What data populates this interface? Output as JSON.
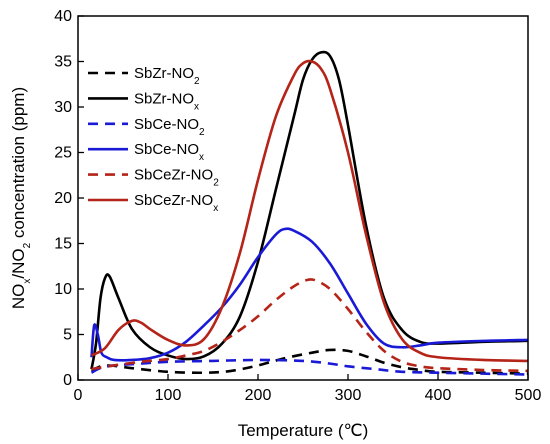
{
  "chart_data": {
    "type": "line",
    "xlabel": "Temperature (℃)",
    "ylabel": {
      "main": "NO",
      "sub1": "x",
      "mid": "/NO",
      "sub2": "2",
      "tail": " concentration (ppm)"
    },
    "xlim": [
      0,
      500
    ],
    "ylim": [
      0,
      40
    ],
    "xticks": [
      0,
      100,
      200,
      300,
      400,
      500
    ],
    "yticks": [
      0,
      5,
      10,
      15,
      20,
      25,
      30,
      35,
      40
    ],
    "grid": false,
    "legend_position": "left",
    "series": [
      {
        "name": "SbZr-NO2",
        "label_base": "SbZr-NO",
        "label_sub": "2",
        "color": "#000000",
        "dash": "dashed",
        "x": [
          15,
          30,
          60,
          100,
          140,
          170,
          200,
          230,
          260,
          280,
          300,
          320,
          340,
          360,
          380,
          400,
          450,
          500
        ],
        "y": [
          1.0,
          1.6,
          1.3,
          0.9,
          0.8,
          1.0,
          1.6,
          2.4,
          3.0,
          3.3,
          3.2,
          2.6,
          1.9,
          1.4,
          1.1,
          0.9,
          0.8,
          0.7
        ]
      },
      {
        "name": "SbZr-NOx",
        "label_base": "SbZr-NO",
        "label_sub": "x",
        "color": "#000000",
        "dash": "solid",
        "x": [
          15,
          20,
          25,
          30,
          35,
          45,
          60,
          80,
          100,
          120,
          140,
          160,
          180,
          200,
          220,
          240,
          250,
          260,
          270,
          280,
          290,
          300,
          320,
          340,
          360,
          380,
          400,
          450,
          500
        ],
        "y": [
          1.2,
          4.0,
          9.0,
          11.2,
          11.4,
          9.0,
          5.6,
          3.6,
          2.7,
          2.3,
          2.6,
          4.0,
          7.0,
          13.0,
          21.0,
          29.0,
          33.0,
          35.2,
          36.0,
          35.6,
          33.0,
          28.0,
          17.0,
          9.0,
          5.5,
          4.2,
          4.0,
          4.2,
          4.3
        ]
      },
      {
        "name": "SbCe-NO2",
        "label_base": "SbCe-NO",
        "label_sub": "2",
        "color": "#1a1ad6",
        "dash": "dashed",
        "x": [
          15,
          25,
          40,
          70,
          100,
          150,
          200,
          250,
          280,
          300,
          330,
          360,
          400,
          450,
          500
        ],
        "y": [
          0.8,
          1.3,
          1.6,
          1.8,
          2.0,
          2.1,
          2.2,
          2.1,
          1.8,
          1.5,
          1.2,
          0.9,
          0.8,
          0.7,
          0.6
        ]
      },
      {
        "name": "SbCe-NOx",
        "label_base": "SbCe-NO",
        "label_sub": "x",
        "color": "#1a1ad6",
        "dash": "solid",
        "x": [
          15,
          18,
          22,
          26,
          32,
          40,
          60,
          80,
          100,
          120,
          140,
          160,
          180,
          200,
          220,
          230,
          240,
          260,
          280,
          300,
          320,
          340,
          360,
          380,
          400,
          450,
          500
        ],
        "y": [
          2.5,
          6.0,
          5.0,
          3.0,
          2.5,
          2.2,
          2.2,
          2.4,
          3.0,
          4.2,
          6.0,
          8.0,
          10.5,
          13.5,
          16.0,
          16.6,
          16.4,
          15.2,
          12.8,
          9.5,
          6.2,
          4.0,
          3.6,
          3.8,
          4.1,
          4.3,
          4.4
        ]
      },
      {
        "name": "SbCeZr-NO2",
        "label_base": "SbCeZr-NO",
        "label_sub": "2",
        "color": "#b42418",
        "dash": "dashed",
        "x": [
          15,
          40,
          70,
          100,
          120,
          140,
          160,
          180,
          200,
          220,
          240,
          255,
          265,
          280,
          300,
          320,
          340,
          360,
          380,
          400,
          450,
          500
        ],
        "y": [
          1.2,
          1.6,
          2.0,
          2.3,
          2.7,
          3.2,
          4.2,
          5.5,
          7.0,
          8.8,
          10.3,
          11.0,
          10.9,
          10.0,
          7.8,
          5.3,
          3.2,
          2.0,
          1.5,
          1.3,
          1.1,
          1.0
        ]
      },
      {
        "name": "SbCeZr-NOx",
        "label_base": "SbCeZr-NO",
        "label_sub": "x",
        "color": "#b42418",
        "dash": "solid",
        "x": [
          15,
          30,
          45,
          60,
          70,
          80,
          100,
          120,
          140,
          160,
          180,
          200,
          220,
          240,
          250,
          260,
          270,
          280,
          300,
          320,
          340,
          360,
          380,
          400,
          450,
          500
        ],
        "y": [
          2.7,
          3.5,
          5.5,
          6.5,
          6.3,
          5.6,
          4.4,
          3.8,
          4.5,
          8.0,
          14.0,
          22.0,
          29.0,
          33.5,
          34.8,
          35.0,
          34.2,
          32.0,
          25.0,
          16.0,
          8.5,
          4.5,
          3.0,
          2.5,
          2.2,
          2.1
        ]
      }
    ]
  }
}
